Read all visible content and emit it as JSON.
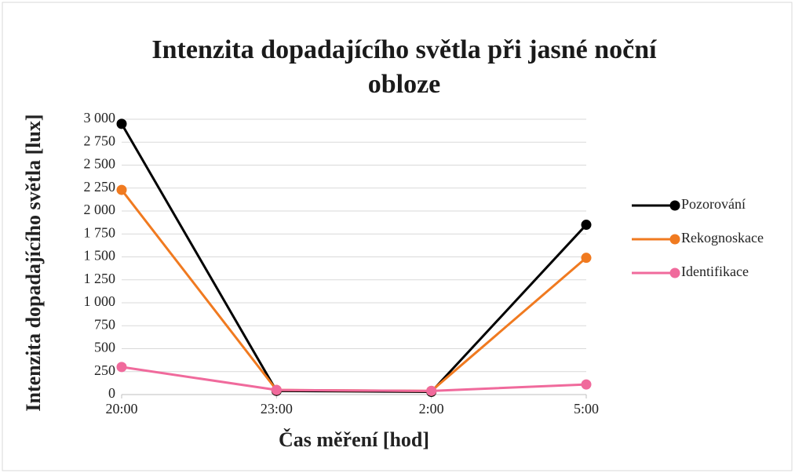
{
  "chart_data": {
    "type": "line",
    "title": "Intenzita dopadajícího světla při jasné noční obloze",
    "x_label": "Čas měření [hod]",
    "y_label": "Intenzita dopadajícího světla [lux]",
    "categories": [
      "20:00",
      "23:00",
      "2:00",
      "5:00"
    ],
    "series": [
      {
        "name": "Pozorování",
        "color": "#000000",
        "values": [
          2950,
          40,
          30,
          1850
        ]
      },
      {
        "name": "Rekognoskace",
        "color": "#f07a20",
        "values": [
          2230,
          50,
          40,
          1490
        ]
      },
      {
        "name": "Identifikace",
        "color": "#f06a9c",
        "values": [
          300,
          50,
          40,
          110
        ]
      }
    ],
    "ylim": [
      0,
      3000
    ],
    "yticks": [
      0,
      250,
      500,
      750,
      {
        "value": 1000,
        "label": "1 000"
      },
      {
        "value": 1250,
        "label": "1 250"
      },
      {
        "value": 1500,
        "label": "1 500"
      },
      {
        "value": 1750,
        "label": "1 750"
      },
      {
        "value": 2000,
        "label": "2 000"
      },
      {
        "value": 2250,
        "label": "2 250"
      },
      {
        "value": 2500,
        "label": "2 500"
      },
      {
        "value": 2750,
        "label": "2 750"
      },
      {
        "value": 3000,
        "label": "3 000"
      }
    ],
    "grid": true,
    "legend": "right"
  }
}
